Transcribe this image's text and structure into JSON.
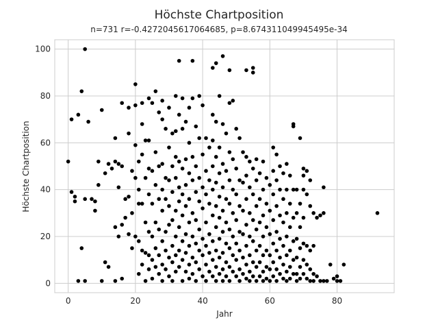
{
  "chart_data": {
    "type": "scatter",
    "title": "Höchste Chartposition",
    "subtitle": "n=731 r=-0.4272045617064685, p=8.674311049945495e-34",
    "xlabel": "Jahr",
    "ylabel": "Höchste Chartposition",
    "xlim": [
      -4,
      97
    ],
    "ylim": [
      -4,
      104
    ],
    "xticks": [
      0,
      20,
      40,
      60,
      80
    ],
    "yticks": [
      0,
      20,
      40,
      60,
      80,
      100
    ],
    "grid": true,
    "point_color": "#000000",
    "grid_color": "#cccccc",
    "points": [
      [
        0,
        52
      ],
      [
        1,
        70
      ],
      [
        1,
        39
      ],
      [
        2,
        37
      ],
      [
        2,
        35
      ],
      [
        3,
        72
      ],
      [
        3,
        1
      ],
      [
        4,
        82
      ],
      [
        4,
        15
      ],
      [
        5,
        100
      ],
      [
        5,
        36
      ],
      [
        5,
        1
      ],
      [
        6,
        69
      ],
      [
        7,
        36
      ],
      [
        8,
        35
      ],
      [
        8,
        31
      ],
      [
        9,
        52
      ],
      [
        9,
        42
      ],
      [
        10,
        74
      ],
      [
        10,
        1
      ],
      [
        11,
        9
      ],
      [
        11,
        47
      ],
      [
        12,
        51
      ],
      [
        12,
        7
      ],
      [
        13,
        49
      ],
      [
        14,
        62
      ],
      [
        14,
        52
      ],
      [
        14,
        24
      ],
      [
        14,
        1
      ],
      [
        15,
        51
      ],
      [
        15,
        41
      ],
      [
        15,
        20
      ],
      [
        16,
        77
      ],
      [
        16,
        50
      ],
      [
        16,
        25
      ],
      [
        16,
        2
      ],
      [
        17,
        36
      ],
      [
        17,
        28
      ],
      [
        18,
        75
      ],
      [
        18,
        64
      ],
      [
        18,
        37
      ],
      [
        18,
        21
      ],
      [
        19,
        48
      ],
      [
        19,
        30
      ],
      [
        19,
        15
      ],
      [
        20,
        85
      ],
      [
        20,
        76
      ],
      [
        20,
        59
      ],
      [
        20,
        45
      ],
      [
        20,
        20
      ],
      [
        21,
        52
      ],
      [
        21,
        40
      ],
      [
        21,
        34
      ],
      [
        21,
        18
      ],
      [
        21,
        4
      ],
      [
        22,
        77
      ],
      [
        22,
        68
      ],
      [
        22,
        55
      ],
      [
        22,
        34
      ],
      [
        22,
        14
      ],
      [
        22,
        8
      ],
      [
        23,
        61
      ],
      [
        23,
        45
      ],
      [
        23,
        26
      ],
      [
        23,
        13
      ],
      [
        23,
        1
      ],
      [
        24,
        79
      ],
      [
        24,
        61
      ],
      [
        24,
        49
      ],
      [
        24,
        38
      ],
      [
        24,
        22
      ],
      [
        24,
        12
      ],
      [
        24,
        6
      ],
      [
        25,
        77
      ],
      [
        25,
        48
      ],
      [
        25,
        34
      ],
      [
        25,
        20
      ],
      [
        25,
        10
      ],
      [
        25,
        2
      ],
      [
        26,
        82
      ],
      [
        26,
        56
      ],
      [
        26,
        42
      ],
      [
        26,
        26
      ],
      [
        26,
        15
      ],
      [
        26,
        7
      ],
      [
        27,
        73
      ],
      [
        27,
        50
      ],
      [
        27,
        36
      ],
      [
        27,
        23
      ],
      [
        27,
        12
      ],
      [
        27,
        4
      ],
      [
        28,
        78
      ],
      [
        28,
        70
      ],
      [
        28,
        51
      ],
      [
        28,
        40
      ],
      [
        28,
        31
      ],
      [
        28,
        18
      ],
      [
        28,
        8
      ],
      [
        28,
        1
      ],
      [
        29,
        66
      ],
      [
        29,
        45
      ],
      [
        29,
        36
      ],
      [
        29,
        22
      ],
      [
        29,
        14
      ],
      [
        29,
        6
      ],
      [
        30,
        75
      ],
      [
        30,
        58
      ],
      [
        30,
        44
      ],
      [
        30,
        33
      ],
      [
        30,
        25
      ],
      [
        30,
        11
      ],
      [
        30,
        3
      ],
      [
        31,
        64
      ],
      [
        31,
        50
      ],
      [
        31,
        39
      ],
      [
        31,
        27
      ],
      [
        31,
        16
      ],
      [
        31,
        9
      ],
      [
        31,
        1
      ],
      [
        32,
        80
      ],
      [
        32,
        65
      ],
      [
        32,
        54
      ],
      [
        32,
        45
      ],
      [
        32,
        31
      ],
      [
        32,
        20
      ],
      [
        32,
        12
      ],
      [
        32,
        5
      ],
      [
        33,
        95
      ],
      [
        33,
        72
      ],
      [
        33,
        52
      ],
      [
        33,
        41
      ],
      [
        33,
        35
      ],
      [
        33,
        24
      ],
      [
        33,
        14
      ],
      [
        33,
        7
      ],
      [
        34,
        79
      ],
      [
        34,
        66
      ],
      [
        34,
        49
      ],
      [
        34,
        38
      ],
      [
        34,
        29
      ],
      [
        34,
        18
      ],
      [
        34,
        10
      ],
      [
        34,
        1
      ],
      [
        35,
        69
      ],
      [
        35,
        53
      ],
      [
        35,
        42
      ],
      [
        35,
        33
      ],
      [
        35,
        21
      ],
      [
        35,
        13
      ],
      [
        35,
        5
      ],
      [
        36,
        75
      ],
      [
        36,
        60
      ],
      [
        36,
        47
      ],
      [
        36,
        36
      ],
      [
        36,
        26
      ],
      [
        36,
        16
      ],
      [
        36,
        8
      ],
      [
        36,
        2
      ],
      [
        37,
        95
      ],
      [
        37,
        79
      ],
      [
        37,
        54
      ],
      [
        37,
        44
      ],
      [
        37,
        30
      ],
      [
        37,
        20
      ],
      [
        37,
        11
      ],
      [
        37,
        4
      ],
      [
        38,
        67
      ],
      [
        38,
        50
      ],
      [
        38,
        39
      ],
      [
        38,
        27
      ],
      [
        38,
        17
      ],
      [
        38,
        9
      ],
      [
        38,
        1
      ],
      [
        39,
        80
      ],
      [
        39,
        62
      ],
      [
        39,
        45
      ],
      [
        39,
        35
      ],
      [
        39,
        23
      ],
      [
        39,
        14
      ],
      [
        39,
        6
      ],
      [
        40,
        76
      ],
      [
        40,
        55
      ],
      [
        40,
        41
      ],
      [
        40,
        32
      ],
      [
        40,
        19
      ],
      [
        40,
        12
      ],
      [
        40,
        3
      ],
      [
        41,
        62
      ],
      [
        41,
        48
      ],
      [
        41,
        38
      ],
      [
        41,
        26
      ],
      [
        41,
        16
      ],
      [
        41,
        8
      ],
      [
        41,
        1
      ],
      [
        42,
        58
      ],
      [
        42,
        44
      ],
      [
        42,
        34
      ],
      [
        42,
        21
      ],
      [
        42,
        13
      ],
      [
        42,
        5
      ],
      [
        43,
        92
      ],
      [
        43,
        72
      ],
      [
        43,
        61
      ],
      [
        43,
        50
      ],
      [
        43,
        40
      ],
      [
        43,
        29
      ],
      [
        43,
        18
      ],
      [
        43,
        10
      ],
      [
        43,
        3
      ],
      [
        44,
        94
      ],
      [
        44,
        69
      ],
      [
        44,
        54
      ],
      [
        44,
        43
      ],
      [
        44,
        33
      ],
      [
        44,
        24
      ],
      [
        44,
        14
      ],
      [
        44,
        7
      ],
      [
        44,
        1
      ],
      [
        45,
        80
      ],
      [
        45,
        58
      ],
      [
        45,
        47
      ],
      [
        45,
        37
      ],
      [
        45,
        28
      ],
      [
        45,
        19
      ],
      [
        45,
        11
      ],
      [
        45,
        4
      ],
      [
        46,
        97
      ],
      [
        46,
        68
      ],
      [
        46,
        51
      ],
      [
        46,
        41
      ],
      [
        46,
        31
      ],
      [
        46,
        22
      ],
      [
        46,
        13
      ],
      [
        46,
        6
      ],
      [
        46,
        1
      ],
      [
        47,
        64
      ],
      [
        47,
        48
      ],
      [
        47,
        36
      ],
      [
        47,
        26
      ],
      [
        47,
        17
      ],
      [
        47,
        9
      ],
      [
        47,
        3
      ],
      [
        48,
        91
      ],
      [
        48,
        77
      ],
      [
        48,
        56
      ],
      [
        48,
        44
      ],
      [
        48,
        34
      ],
      [
        48,
        23
      ],
      [
        48,
        15
      ],
      [
        48,
        7
      ],
      [
        48,
        1
      ],
      [
        49,
        78
      ],
      [
        49,
        53
      ],
      [
        49,
        40
      ],
      [
        49,
        30
      ],
      [
        49,
        20
      ],
      [
        49,
        12
      ],
      [
        49,
        5
      ],
      [
        50,
        66
      ],
      [
        50,
        49
      ],
      [
        50,
        38
      ],
      [
        50,
        27
      ],
      [
        50,
        17
      ],
      [
        50,
        10
      ],
      [
        50,
        3
      ],
      [
        51,
        62
      ],
      [
        51,
        44
      ],
      [
        51,
        33
      ],
      [
        51,
        22
      ],
      [
        51,
        14
      ],
      [
        51,
        6
      ],
      [
        51,
        1
      ],
      [
        52,
        56
      ],
      [
        52,
        43
      ],
      [
        52,
        31
      ],
      [
        52,
        21
      ],
      [
        52,
        11
      ],
      [
        52,
        4
      ],
      [
        53,
        91
      ],
      [
        53,
        54
      ],
      [
        53,
        46
      ],
      [
        53,
        36
      ],
      [
        53,
        25
      ],
      [
        53,
        16
      ],
      [
        53,
        8
      ],
      [
        53,
        2
      ],
      [
        54,
        52
      ],
      [
        54,
        41
      ],
      [
        54,
        30
      ],
      [
        54,
        20
      ],
      [
        54,
        12
      ],
      [
        54,
        5
      ],
      [
        54,
        1
      ],
      [
        55,
        92
      ],
      [
        55,
        90
      ],
      [
        55,
        49
      ],
      [
        55,
        38
      ],
      [
        55,
        27
      ],
      [
        55,
        18
      ],
      [
        55,
        9
      ],
      [
        55,
        3
      ],
      [
        56,
        53
      ],
      [
        56,
        44
      ],
      [
        56,
        33
      ],
      [
        56,
        23
      ],
      [
        56,
        14
      ],
      [
        56,
        7
      ],
      [
        56,
        1
      ],
      [
        57,
        47
      ],
      [
        57,
        36
      ],
      [
        57,
        26
      ],
      [
        57,
        16
      ],
      [
        57,
        9
      ],
      [
        57,
        3
      ],
      [
        58,
        52
      ],
      [
        58,
        40
      ],
      [
        58,
        29
      ],
      [
        58,
        20
      ],
      [
        58,
        12
      ],
      [
        58,
        5
      ],
      [
        58,
        1
      ],
      [
        59,
        45
      ],
      [
        59,
        34
      ],
      [
        59,
        24
      ],
      [
        59,
        14
      ],
      [
        59,
        7
      ],
      [
        59,
        2
      ],
      [
        60,
        42
      ],
      [
        60,
        31
      ],
      [
        60,
        21
      ],
      [
        60,
        12
      ],
      [
        60,
        6
      ],
      [
        60,
        1
      ],
      [
        61,
        58
      ],
      [
        61,
        48
      ],
      [
        61,
        38
      ],
      [
        61,
        27
      ],
      [
        61,
        17
      ],
      [
        61,
        9
      ],
      [
        61,
        3
      ],
      [
        62,
        55
      ],
      [
        62,
        44
      ],
      [
        62,
        33
      ],
      [
        62,
        22
      ],
      [
        62,
        14
      ],
      [
        62,
        6
      ],
      [
        62,
        1
      ],
      [
        63,
        50
      ],
      [
        63,
        40
      ],
      [
        63,
        29
      ],
      [
        63,
        19
      ],
      [
        63,
        11
      ],
      [
        63,
        4
      ],
      [
        64,
        47
      ],
      [
        64,
        36
      ],
      [
        64,
        26
      ],
      [
        64,
        16
      ],
      [
        64,
        8
      ],
      [
        64,
        2
      ],
      [
        65,
        51
      ],
      [
        65,
        40
      ],
      [
        65,
        30
      ],
      [
        65,
        20
      ],
      [
        65,
        12
      ],
      [
        65,
        5
      ],
      [
        65,
        1
      ],
      [
        66,
        46
      ],
      [
        66,
        34
      ],
      [
        66,
        24
      ],
      [
        66,
        14
      ],
      [
        66,
        7
      ],
      [
        66,
        2
      ],
      [
        67,
        68
      ],
      [
        67,
        67
      ],
      [
        67,
        40
      ],
      [
        67,
        28
      ],
      [
        67,
        18
      ],
      [
        67,
        10
      ],
      [
        67,
        4
      ],
      [
        68,
        40
      ],
      [
        68,
        30
      ],
      [
        68,
        19
      ],
      [
        68,
        11
      ],
      [
        68,
        4
      ],
      [
        68,
        1
      ],
      [
        69,
        62
      ],
      [
        69,
        34
      ],
      [
        69,
        24
      ],
      [
        69,
        15
      ],
      [
        69,
        7
      ],
      [
        69,
        2
      ],
      [
        70,
        49
      ],
      [
        70,
        46
      ],
      [
        70,
        40
      ],
      [
        70,
        28
      ],
      [
        70,
        17
      ],
      [
        70,
        10
      ],
      [
        70,
        4
      ],
      [
        71,
        48
      ],
      [
        71,
        38
      ],
      [
        71,
        16
      ],
      [
        71,
        8
      ],
      [
        71,
        2
      ],
      [
        72,
        44
      ],
      [
        72,
        33
      ],
      [
        72,
        14
      ],
      [
        72,
        6
      ],
      [
        72,
        1
      ],
      [
        73,
        30
      ],
      [
        73,
        16
      ],
      [
        73,
        4
      ],
      [
        73,
        1
      ],
      [
        74,
        28
      ],
      [
        74,
        3
      ],
      [
        75,
        29
      ],
      [
        75,
        1
      ],
      [
        76,
        41
      ],
      [
        76,
        30
      ],
      [
        76,
        1
      ],
      [
        77,
        1
      ],
      [
        78,
        8
      ],
      [
        79,
        2
      ],
      [
        80,
        3
      ],
      [
        80,
        1
      ],
      [
        81,
        1
      ],
      [
        82,
        8
      ],
      [
        92,
        30
      ]
    ]
  }
}
